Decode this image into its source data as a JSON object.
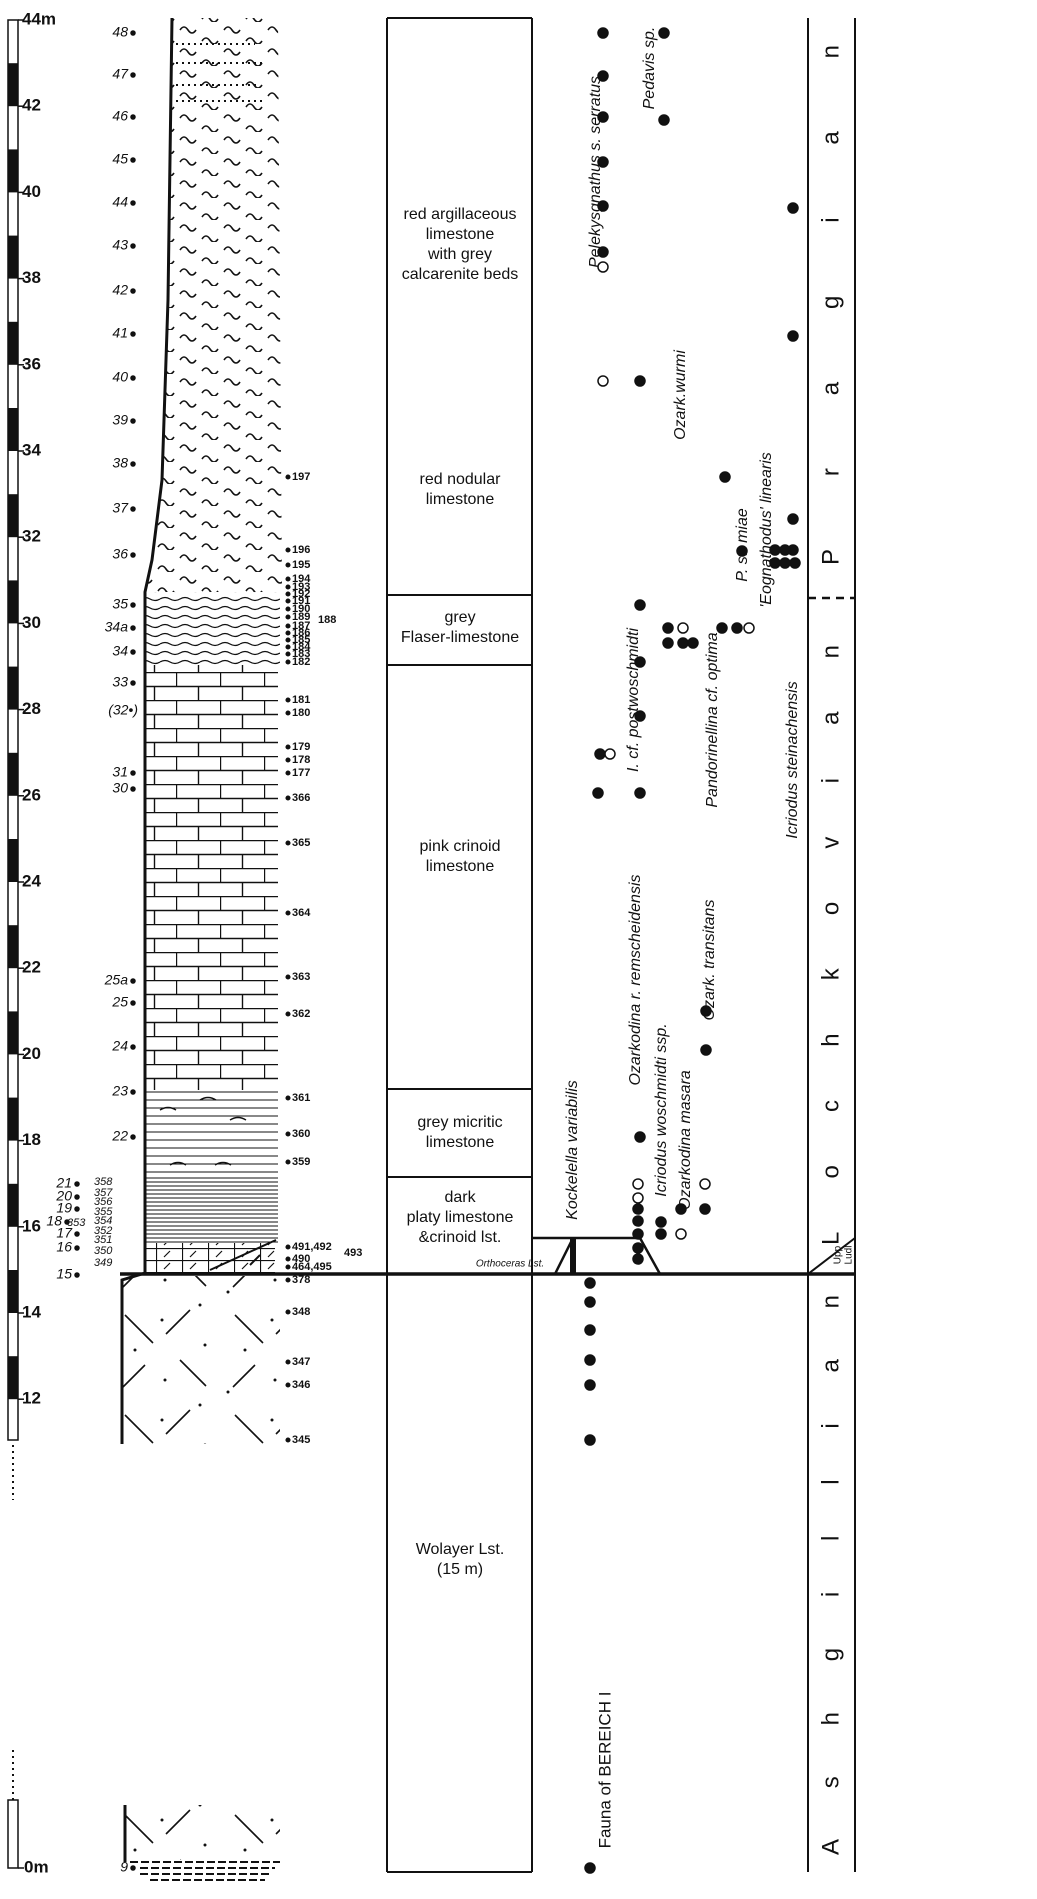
{
  "scale": {
    "labels": [
      "44m",
      "42",
      "40",
      "38",
      "36",
      "34",
      "32",
      "30",
      "28",
      "26",
      "24",
      "22",
      "20",
      "18",
      "16",
      "14",
      "12"
    ],
    "bottom": "0m"
  },
  "samples_left": [
    "48",
    "47",
    "46",
    "45",
    "44",
    "43",
    "42",
    "41",
    "40",
    "39",
    "38",
    "37",
    "36",
    "35",
    "34a",
    "34",
    "33",
    "(32•)",
    "31",
    "30",
    "25a",
    "25",
    "24",
    "23",
    "22",
    "21",
    "20",
    "19",
    "18",
    "17",
    "16",
    "15",
    "9"
  ],
  "samples_small": [
    "358",
    "357",
    "356",
    "355",
    "354",
    "353",
    "352",
    "351",
    "350",
    "349"
  ],
  "samples_right": [
    "197",
    "196",
    "195",
    "194",
    "193",
    "192",
    "191",
    "190",
    "189",
    "188",
    "187",
    "186",
    "185",
    "184",
    "183",
    "182",
    "181",
    "180",
    "179",
    "178",
    "177",
    "366",
    "365",
    "364",
    "363",
    "362",
    "361",
    "360",
    "359",
    "491,492",
    "493",
    "490",
    "464,495",
    "378",
    "348",
    "347",
    "346",
    "345"
  ],
  "units": [
    {
      "lines": [
        "red argillaceous",
        "limestone",
        "with grey",
        "calcarenite beds"
      ]
    },
    {
      "lines": [
        "red nodular",
        "limestone"
      ]
    },
    {
      "lines": [
        "grey",
        "Flaser-limestone"
      ]
    },
    {
      "lines": [
        "pink crinoid",
        "limestone"
      ]
    },
    {
      "lines": [
        "grey micritic",
        "limestone"
      ]
    },
    {
      "lines": [
        "dark",
        "platy limestone",
        "&crinoid lst."
      ]
    },
    {
      "lines": [
        "Wolayer Lst.",
        "(15 m)"
      ]
    }
  ],
  "orthoceras": "Orthoceras Lst.",
  "taxa": [
    "Pelekysgnathus s. serratus",
    "Pedavis sp.",
    "Ozark.wurmi",
    "I. cf. postwoschmidti",
    "Pandorinellina cf. optima",
    "P. st. miae",
    "'Eognathodus' linearis",
    "Icriodus steinachensis",
    "Ozarkodina r. remscheidensis",
    "Icriodus woschmidti ssp.",
    "Ozarkodina masara",
    "Ozark. transitans",
    "Kockelella variabilis"
  ],
  "fauna_label": "Fauna of BEREICH I",
  "stages": [
    "Pragian",
    "Lochkovian",
    "Ashgillian"
  ],
  "ludlow": [
    "Upp",
    "Ludl"
  ]
}
